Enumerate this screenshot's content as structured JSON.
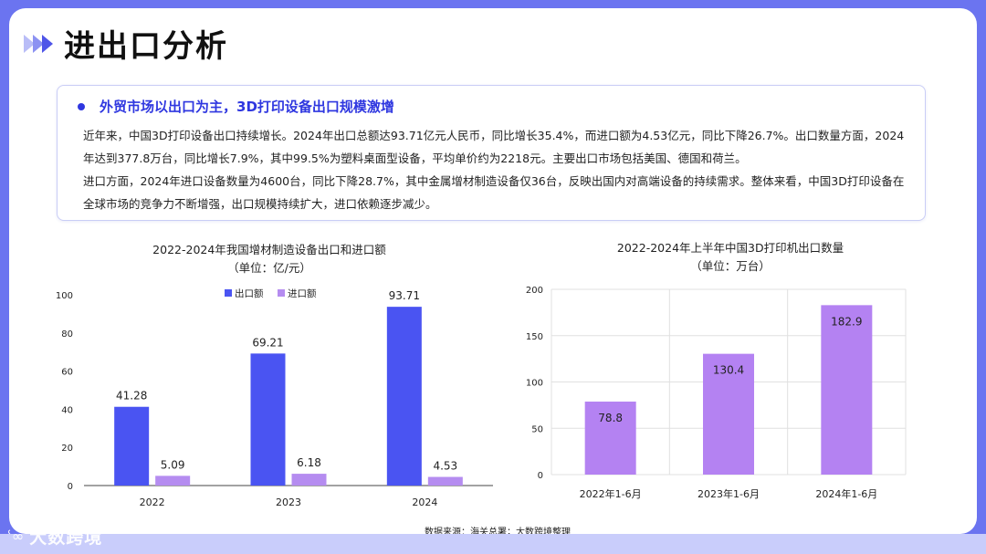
{
  "title": "进出口分析",
  "card": {
    "heading": "外贸市场以出口为主，3D打印设备出口规模激增",
    "paragraphs": [
      "近年来，中国3D打印设备出口持续增长。2024年出口总额达93.71亿元人民币，同比增长35.4%，而进口额为4.53亿元，同比下降26.7%。出口数量方面，2024年达到377.8万台，同比增长7.9%，其中99.5%为塑料桌面型设备，平均单价约为2218元。主要出口市场包括美国、德国和荷兰。",
      "进口方面，2024年进口设备数量为4600台，同比下降28.7%，其中金属增材制造设备仅36台，反映出国内对高端设备的持续需求。整体来看，中国3D打印设备在全球市场的竞争力不断增强，出口规模持续扩大，进口依赖逐步减少。"
    ]
  },
  "source": "数据来源：海关总署；大数跨境整理",
  "logo": {
    "text": "大数跨境",
    "icon": "brand-logo-icon"
  },
  "colors": {
    "accent": "#4f55e8",
    "export": "#4a54f2",
    "import": "#b58cf0",
    "qty": "#b482f2"
  },
  "chart_data": [
    {
      "type": "bar",
      "title": "2022-2024年我国增材制造设备出口和进口额",
      "subtitle": "（单位：亿/元）",
      "categories": [
        "2022",
        "2023",
        "2024"
      ],
      "series": [
        {
          "name": "出口额",
          "values": [
            41.28,
            69.21,
            93.71
          ],
          "labels": [
            "41.28",
            "69.21",
            "93.71"
          ]
        },
        {
          "name": "进口额",
          "values": [
            5.09,
            6.18,
            4.53
          ],
          "labels": [
            "5.09",
            "6.18",
            "4.53"
          ]
        }
      ],
      "yticks": [
        "0",
        "20",
        "40",
        "60",
        "80",
        "100"
      ],
      "ylim": [
        0,
        100
      ],
      "grid": false,
      "legend": "top-center"
    },
    {
      "type": "bar",
      "title": "2022-2024年上半年中国3D打印机出口数量",
      "subtitle": "（单位：万台）",
      "categories": [
        "2022年1-6月",
        "2023年1-6月",
        "2024年1-6月"
      ],
      "series": [
        {
          "values": [
            78.8,
            130.4,
            182.9
          ],
          "labels": [
            "78.8",
            "130.4",
            "182.9"
          ]
        }
      ],
      "yticks": [
        "0",
        "50",
        "100",
        "150",
        "200"
      ],
      "ylim": [
        0,
        200
      ],
      "grid": true
    }
  ]
}
